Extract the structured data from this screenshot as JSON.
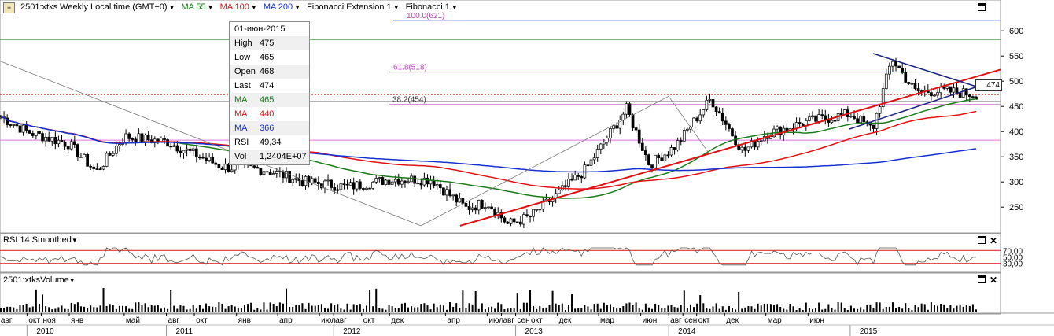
{
  "header": {
    "symbol": "2501:xtks Weekly Local time (GMT+0)",
    "ma55": "MA 55",
    "ma100": "MA 100",
    "ma200": "MA 200",
    "fib_ext": "Fibonacci Extension 1",
    "fib": "Fibonacci 1",
    "colors": {
      "ma55": "#1a7a1a",
      "ma100": "#e01010",
      "ma200": "#1530d0"
    }
  },
  "tooltip": {
    "date": "01-июн-2015",
    "rows": [
      {
        "k": "High",
        "v": "475",
        "color": "#000000"
      },
      {
        "k": "Low",
        "v": "465",
        "color": "#000000"
      },
      {
        "k": "Open",
        "v": "468",
        "color": "#000000"
      },
      {
        "k": "Last",
        "v": "474",
        "color": "#000000"
      },
      {
        "k": "MA",
        "v": "465",
        "color": "#1a7a1a"
      },
      {
        "k": "MA",
        "v": "440",
        "color": "#e01010"
      },
      {
        "k": "MA",
        "v": "366",
        "color": "#1530d0"
      },
      {
        "k": "RSI",
        "v": "49,34",
        "color": "#000000"
      },
      {
        "k": "Vol",
        "v": "1,2404E+07",
        "color": "#000000"
      }
    ]
  },
  "panes": {
    "rsi_title": "RSI 14 Smoothed",
    "vol_title": "2501:xtksVolume"
  },
  "chart_data": [
    {
      "type": "candlestick",
      "title": "2501:xtks Weekly Local time (GMT+0)",
      "yticks": [
        250,
        300,
        350,
        400,
        450,
        500,
        550,
        600
      ],
      "ylim": [
        205,
        630
      ],
      "last_price": "474",
      "fib_labels": [
        {
          "text": "100.0(621)",
          "level": 621
        },
        {
          "text": "61.8(518)",
          "level": 518
        },
        {
          "text": "38.2(454)",
          "level": 454
        }
      ],
      "anchors": [
        {
          "date": "2009-08-03",
          "close": 430
        },
        {
          "date": "2009-10-01",
          "close": 400
        },
        {
          "date": "2010-01-01",
          "close": 375
        },
        {
          "date": "2010-03-01",
          "close": 320
        },
        {
          "date": "2010-05-01",
          "close": 390
        },
        {
          "date": "2010-08-01",
          "close": 380
        },
        {
          "date": "2010-12-01",
          "close": 330
        },
        {
          "date": "2011-03-01",
          "close": 325
        },
        {
          "date": "2011-06-01",
          "close": 300
        },
        {
          "date": "2011-09-01",
          "close": 290
        },
        {
          "date": "2011-12-01",
          "close": 305
        },
        {
          "date": "2012-03-01",
          "close": 305
        },
        {
          "date": "2012-05-15",
          "close": 248
        },
        {
          "date": "2012-07-01",
          "close": 260
        },
        {
          "date": "2012-08-15",
          "close": 216
        },
        {
          "date": "2012-10-01",
          "close": 230
        },
        {
          "date": "2012-12-01",
          "close": 275
        },
        {
          "date": "2013-02-01",
          "close": 325
        },
        {
          "date": "2013-05-01",
          "close": 445
        },
        {
          "date": "2013-06-20",
          "close": 335
        },
        {
          "date": "2013-08-15",
          "close": 370
        },
        {
          "date": "2013-11-01",
          "close": 465
        },
        {
          "date": "2014-01-10",
          "close": 360
        },
        {
          "date": "2014-03-01",
          "close": 395
        },
        {
          "date": "2014-06-01",
          "close": 420
        },
        {
          "date": "2014-09-01",
          "close": 435
        },
        {
          "date": "2014-10-20",
          "close": 405
        },
        {
          "date": "2014-12-01",
          "close": 545
        },
        {
          "date": "2015-01-20",
          "close": 480
        },
        {
          "date": "2015-04-01",
          "close": 480
        },
        {
          "date": "2015-06-01",
          "close": 474
        }
      ],
      "ma_end_values": {
        "ma55": 465,
        "ma100": 440,
        "ma200": 366
      }
    },
    {
      "type": "line",
      "title": "RSI 14 Smoothed",
      "yticks_labels": [
        "70,00",
        "50,00",
        "30,00"
      ],
      "levels": [
        70,
        50,
        30
      ],
      "last_value": 49.34
    },
    {
      "type": "bar",
      "title": "2501:xtksVolume",
      "last_value": "1,2404E+07"
    }
  ],
  "xaxis": {
    "months": [
      {
        "label": "авг",
        "date": "2009-08-01"
      },
      {
        "label": "окт",
        "date": "2009-10-01"
      },
      {
        "label": "ноя",
        "date": "2009-11-01"
      },
      {
        "label": "янв",
        "date": "2010-01-01"
      },
      {
        "label": "май",
        "date": "2010-05-01"
      },
      {
        "label": "авг",
        "date": "2010-08-01"
      },
      {
        "label": "окт",
        "date": "2010-10-01"
      },
      {
        "label": "янв",
        "date": "2011-01-01"
      },
      {
        "label": "апр",
        "date": "2011-04-01"
      },
      {
        "label": "июл",
        "date": "2011-07-01"
      },
      {
        "label": "авг",
        "date": "2011-08-01"
      },
      {
        "label": "окт",
        "date": "2011-10-01"
      },
      {
        "label": "дек",
        "date": "2011-12-01"
      },
      {
        "label": "апр",
        "date": "2012-04-01"
      },
      {
        "label": "июл",
        "date": "2012-07-01"
      },
      {
        "label": "авг",
        "date": "2012-08-01"
      },
      {
        "label": "сен",
        "date": "2012-09-01"
      },
      {
        "label": "окт",
        "date": "2012-10-01"
      },
      {
        "label": "дек",
        "date": "2012-12-01"
      },
      {
        "label": "мар",
        "date": "2013-03-01"
      },
      {
        "label": "июн",
        "date": "2013-06-01"
      },
      {
        "label": "авг",
        "date": "2013-08-01"
      },
      {
        "label": "сен",
        "date": "2013-09-01"
      },
      {
        "label": "окт",
        "date": "2013-10-01"
      },
      {
        "label": "дек",
        "date": "2013-12-01"
      },
      {
        "label": "мар",
        "date": "2014-03-01"
      },
      {
        "label": "июн",
        "date": "2014-06-01"
      }
    ],
    "years": [
      {
        "label": "2010",
        "date": "2009-10-01"
      },
      {
        "label": "2011",
        "date": "2010-08-01"
      },
      {
        "label": "2012",
        "date": "2011-08-01"
      },
      {
        "label": "2013",
        "date": "2012-09-01"
      },
      {
        "label": "2014",
        "date": "2013-08-01"
      },
      {
        "label": "2015",
        "date": "2014-09-01"
      }
    ]
  }
}
